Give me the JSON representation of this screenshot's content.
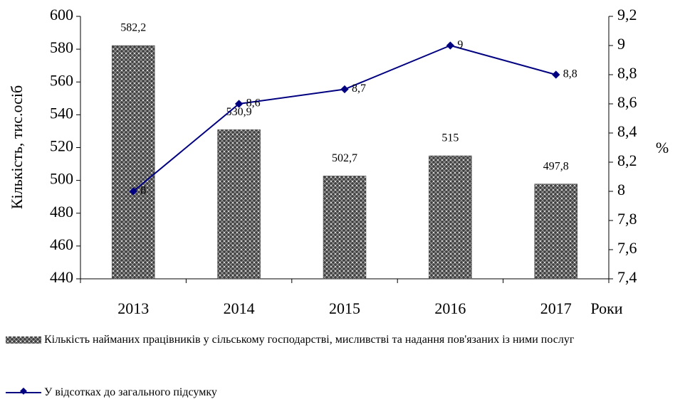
{
  "chart_data": {
    "type": "bar",
    "categories": [
      "2013",
      "2014",
      "2015",
      "2016",
      "2017"
    ],
    "series": [
      {
        "name": "Кількість найманих працівників у сільському господарстві, мисливстві та надання пов'язаних із ними послуг",
        "type": "bar",
        "color": "#404040",
        "values": [
          582.2,
          530.9,
          502.7,
          515,
          497.8
        ],
        "value_labels": [
          "582,2",
          "530,9",
          "502,7",
          "515",
          "497,8"
        ]
      },
      {
        "name": "У відсотках до загального підсумку",
        "type": "line",
        "axis": "y2",
        "color": "#000080",
        "values": [
          8,
          8.6,
          8.7,
          9,
          8.8
        ],
        "value_labels": [
          "8",
          "8,6",
          "8,7",
          "9",
          "8,8"
        ]
      }
    ],
    "y_label": "Кількість, тис.осіб",
    "y2_label": "%",
    "x_label": "Роки",
    "ylim": [
      440,
      600
    ],
    "yticks": [
      440,
      460,
      480,
      500,
      520,
      540,
      560,
      580,
      600
    ],
    "y2lim": [
      7.4,
      9.2
    ],
    "y2ticks": [
      {
        "value": 7.4,
        "label": "7,4"
      },
      {
        "value": 7.6,
        "label": "7,6"
      },
      {
        "value": 7.8,
        "label": "7,8"
      },
      8,
      {
        "value": 8.2,
        "label": "8,2"
      },
      {
        "value": 8.4,
        "label": "8,4"
      },
      {
        "value": 8.6,
        "label": "8,6"
      },
      {
        "value": 8.8,
        "label": "8,8"
      },
      9,
      {
        "value": 9.2,
        "label": "9,2"
      }
    ]
  }
}
